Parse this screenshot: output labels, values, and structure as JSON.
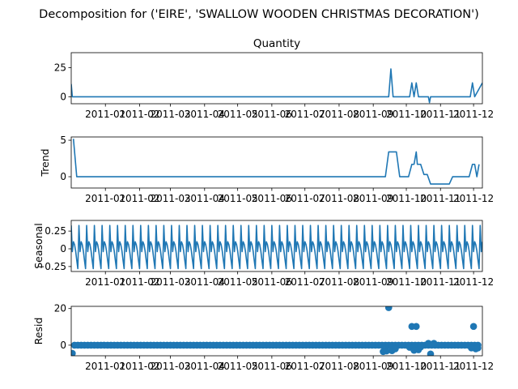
{
  "suptitle": "Decomposition for ('EIRE', 'SWALLOW WOODEN CHRISTMAS DECORATION')",
  "line_color": "#1f77b4",
  "chart_data": [
    {
      "type": "line",
      "panel": "observed",
      "title": "Quantity",
      "ylabel": "",
      "xlim": [
        "2010-12-01",
        "2011-12-09"
      ],
      "ylim": [
        -6,
        38
      ],
      "yticks": [
        0,
        25
      ],
      "xticks": [
        "2011-01",
        "2011-02",
        "2011-03",
        "2011-04",
        "2011-05",
        "2011-06",
        "2011-07",
        "2011-08",
        "2011-09",
        "2011-10",
        "2011-11",
        "2011-12"
      ],
      "x": [
        "2010-12-01",
        "2010-12-02",
        "2011-09-15",
        "2011-09-17",
        "2011-09-19",
        "2011-10-04",
        "2011-10-06",
        "2011-10-08",
        "2011-10-10",
        "2011-10-12",
        "2011-10-21",
        "2011-10-22",
        "2011-10-23",
        "2011-11-28",
        "2011-11-30",
        "2011-12-02",
        "2011-12-09"
      ],
      "values": [
        11,
        0,
        0,
        24,
        0,
        0,
        12,
        0,
        12,
        0,
        0,
        -5,
        0,
        0,
        12,
        0,
        12
      ]
    },
    {
      "type": "line",
      "panel": "trend",
      "title": "",
      "ylabel": "Trend",
      "xlim": [
        "2010-12-01",
        "2011-12-09"
      ],
      "ylim": [
        -1.55,
        5.45
      ],
      "yticks": [
        0,
        5
      ],
      "xticks": [
        "2011-01",
        "2011-02",
        "2011-03",
        "2011-04",
        "2011-05",
        "2011-06",
        "2011-07",
        "2011-08",
        "2011-09",
        "2011-10",
        "2011-11",
        "2011-12"
      ],
      "x": [
        "2010-12-03",
        "2010-12-06",
        "2011-09-12",
        "2011-09-15",
        "2011-09-22",
        "2011-09-25",
        "2011-10-03",
        "2011-10-06",
        "2011-10-08",
        "2011-10-10",
        "2011-10-11",
        "2011-10-14",
        "2011-10-17",
        "2011-10-20",
        "2011-10-23",
        "2011-10-25",
        "2011-11-09",
        "2011-11-12",
        "2011-11-18",
        "2011-11-21",
        "2011-11-27",
        "2011-11-30",
        "2011-12-02",
        "2011-12-04",
        "2011-12-06"
      ],
      "values": [
        5.2,
        0,
        0,
        3.4,
        3.4,
        0,
        0,
        1.7,
        1.7,
        3.4,
        1.7,
        1.7,
        0.3,
        0.3,
        -1.0,
        -1.0,
        -1.0,
        0,
        0,
        0,
        0,
        1.7,
        1.7,
        0,
        1.7
      ]
    },
    {
      "type": "line",
      "panel": "seasonal",
      "title": "",
      "ylabel": "Seasonal",
      "xlim": [
        "2010-12-01",
        "2011-12-09"
      ],
      "ylim": [
        -0.32,
        0.4
      ],
      "yticks": [
        0.25,
        0.0,
        -0.25
      ],
      "xticks": [
        "2011-01",
        "2011-02",
        "2011-03",
        "2011-04",
        "2011-05",
        "2011-06",
        "2011-07",
        "2011-08",
        "2011-09",
        "2011-10",
        "2011-11",
        "2011-12"
      ],
      "period_days": 7,
      "pattern": [
        0.33,
        -0.04,
        0.1,
        0.06,
        -0.03,
        -0.16,
        -0.28
      ]
    },
    {
      "type": "scatter",
      "panel": "resid",
      "title": "",
      "ylabel": "Resid",
      "xlim": [
        "2010-12-01",
        "2011-12-09"
      ],
      "ylim": [
        -5.8,
        21.2
      ],
      "yticks": [
        0,
        20
      ],
      "xticks": [
        "2011-01",
        "2011-02",
        "2011-03",
        "2011-04",
        "2011-05",
        "2011-06",
        "2011-07",
        "2011-08",
        "2011-09",
        "2011-10",
        "2011-11",
        "2011-12"
      ],
      "baseline_from": "2010-12-04",
      "baseline_to": "2011-12-07",
      "baseline_step_days": 3,
      "baseline_value": 0,
      "points": [
        {
          "x": "2010-12-02",
          "y": -4.5
        },
        {
          "x": "2011-09-10",
          "y": -3.5
        },
        {
          "x": "2011-09-13",
          "y": -3.2
        },
        {
          "x": "2011-09-15",
          "y": 20.5
        },
        {
          "x": "2011-09-18",
          "y": -3.0
        },
        {
          "x": "2011-09-21",
          "y": -2.0
        },
        {
          "x": "2011-10-04",
          "y": -1.2
        },
        {
          "x": "2011-10-06",
          "y": 10.2
        },
        {
          "x": "2011-10-08",
          "y": -2.8
        },
        {
          "x": "2011-10-10",
          "y": 10.2
        },
        {
          "x": "2011-10-12",
          "y": -2.5
        },
        {
          "x": "2011-10-14",
          "y": -1.0
        },
        {
          "x": "2011-10-21",
          "y": 1.0
        },
        {
          "x": "2011-10-23",
          "y": -4.8
        },
        {
          "x": "2011-10-26",
          "y": 1.0
        },
        {
          "x": "2011-11-29",
          "y": -1.5
        },
        {
          "x": "2011-12-01",
          "y": 10.2
        },
        {
          "x": "2011-12-03",
          "y": -2.0
        },
        {
          "x": "2011-12-05",
          "y": -1.5
        }
      ]
    }
  ]
}
